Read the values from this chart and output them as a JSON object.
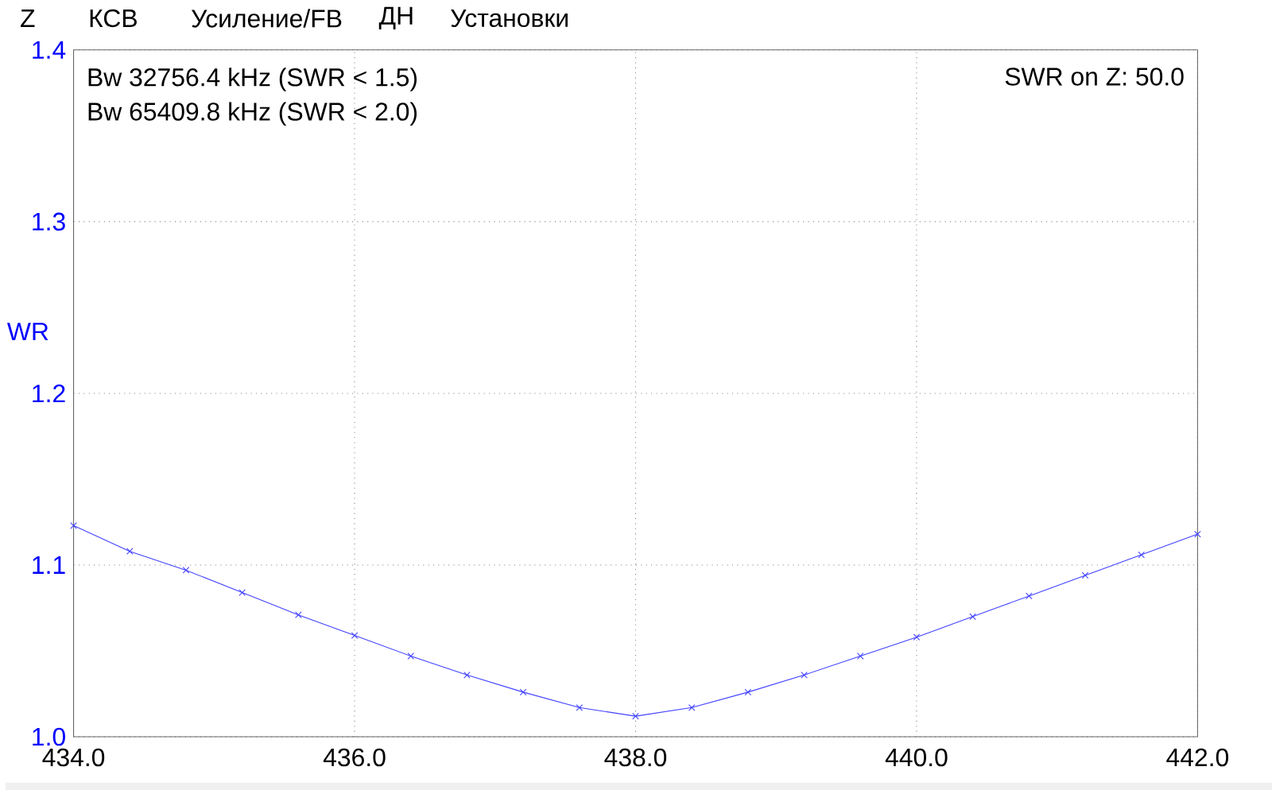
{
  "chart_data": {
    "type": "line",
    "ylabel": "WR",
    "annotations": [
      "Z",
      "КСВ",
      "Усиление/FB",
      "ДН",
      "Установки",
      "Bw 32756.4 kHz (SWR < 1.5)",
      "Bw 65409.8 kHz (SWR < 2.0)",
      "SWR on Z: 50.0"
    ],
    "x": [
      434.0,
      434.4,
      434.8,
      435.2,
      435.6,
      436.0,
      436.4,
      436.8,
      437.2,
      437.6,
      438.0,
      438.4,
      438.8,
      439.2,
      439.6,
      440.0,
      440.4,
      440.8,
      441.2,
      441.6,
      442.0
    ],
    "series": [
      {
        "color": "#4040ff",
        "values": [
          1.123,
          1.108,
          1.097,
          1.084,
          1.071,
          1.059,
          1.047,
          1.036,
          1.026,
          1.017,
          1.012,
          1.017,
          1.026,
          1.036,
          1.047,
          1.058,
          1.07,
          1.082,
          1.094,
          1.106,
          1.118
        ]
      }
    ],
    "xlim": [
      434.0,
      442.0
    ],
    "ylim": [
      1.0,
      1.4
    ],
    "xticks": [
      {
        "value": 434,
        "label": "434.0"
      },
      {
        "value": 436,
        "label": "436.0"
      },
      {
        "value": 438,
        "label": "438.0"
      },
      {
        "value": 440,
        "label": "440.0"
      },
      {
        "value": 442,
        "label": "442.0"
      }
    ],
    "yticks": [
      {
        "value": 1.0,
        "label": "1.0"
      },
      {
        "value": 1.1,
        "label": "1.1"
      },
      {
        "value": 1.2,
        "label": "1.2"
      },
      {
        "value": 1.3,
        "label": "1.3"
      },
      {
        "value": 1.4,
        "label": "1.4"
      }
    ],
    "grid": true,
    "marker": "cross",
    "line_style": "solid"
  }
}
